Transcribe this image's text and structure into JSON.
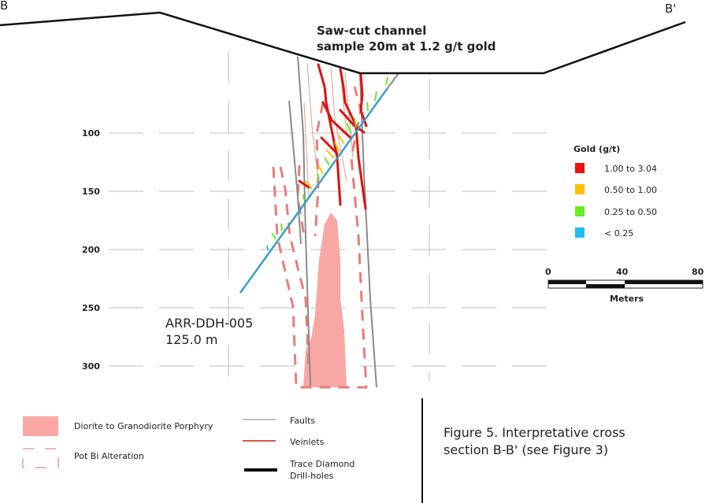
{
  "section": {
    "left_label": "B",
    "right_label": "B'"
  },
  "channel": {
    "line1": "Saw-cut channel",
    "line2": "sample 20m at 1.2 g/t gold"
  },
  "depth_ticks": [
    "100",
    "150",
    "200",
    "250",
    "300"
  ],
  "drillhole": {
    "name": "ARR-DDH-005",
    "length": "125.0 m"
  },
  "gold_legend": {
    "title": "Gold (g/t)",
    "items": [
      {
        "label": "1.00 to 3.04",
        "color": "#ee1111"
      },
      {
        "label": "0.50 to 1.00",
        "color": "#ffc000"
      },
      {
        "label": "0.25 to 0.50",
        "color": "#66ee22"
      },
      {
        "label": "< 0.25",
        "color": "#22bbee"
      }
    ]
  },
  "scale": {
    "ticks": [
      "0",
      "40",
      "80"
    ],
    "unit": "Meters"
  },
  "legend": {
    "porphyry": "Diorite to Granodiorite Porphyry",
    "alteration": "Pot Bi Alteration",
    "faults": "Faults",
    "veinlets": "Veinlets",
    "drillholes_line1": "Trace Diamond",
    "drillholes_line2": "Drill-holes"
  },
  "caption": {
    "line1": "Figure 5. Interpretative cross",
    "line2": "section B-B' (see Figure 3)"
  }
}
